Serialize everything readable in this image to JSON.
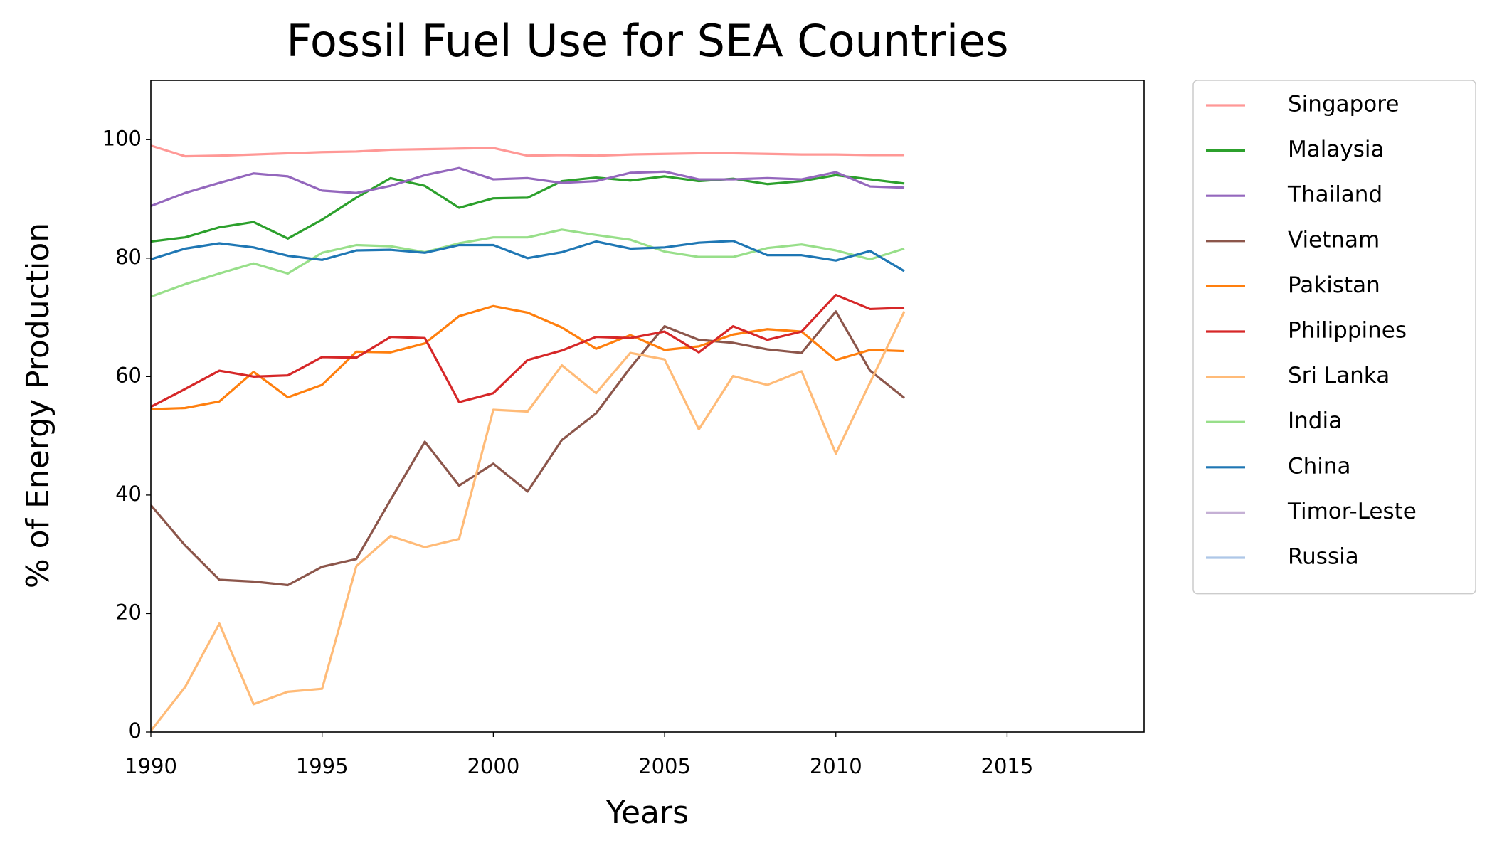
{
  "chart_data": {
    "type": "line",
    "title": "Fossil Fuel Use for SEA Countries",
    "xlabel": "Years",
    "ylabel": "% of Energy Production",
    "x": [
      1990,
      1991,
      1992,
      1993,
      1994,
      1995,
      1996,
      1997,
      1998,
      1999,
      2000,
      2001,
      2002,
      2003,
      2004,
      2005,
      2006,
      2007,
      2008,
      2009,
      2010,
      2011,
      2012
    ],
    "xlim": [
      1990,
      2019
    ],
    "xticks": [
      1990,
      1995,
      2000,
      2005,
      2010,
      2015
    ],
    "ylim": [
      0,
      110
    ],
    "yticks": [
      0,
      20,
      40,
      60,
      80,
      100
    ],
    "grid": false,
    "legend": "outside-right",
    "series": [
      {
        "name": "Singapore",
        "color": "#ff9896",
        "values": [
          99,
          97.2,
          97.3,
          97.5,
          97.7,
          97.9,
          98.0,
          98.3,
          98.4,
          98.5,
          98.6,
          97.3,
          97.4,
          97.3,
          97.5,
          97.6,
          97.7,
          97.7,
          97.6,
          97.5,
          97.5,
          97.4,
          97.4
        ]
      },
      {
        "name": "Malaysia",
        "color": "#2ca02c",
        "values": [
          82.8,
          83.5,
          85.2,
          86.1,
          83.3,
          86.5,
          90.2,
          93.5,
          92.2,
          88.5,
          90.1,
          90.2,
          93.0,
          93.6,
          93.1,
          93.8,
          93.0,
          93.4,
          92.5,
          93.0,
          94.0,
          93.3,
          92.6
        ]
      },
      {
        "name": "Thailand",
        "color": "#9467bd",
        "values": [
          88.8,
          91.0,
          92.7,
          94.3,
          93.8,
          91.4,
          91.0,
          92.2,
          94.0,
          95.2,
          93.3,
          93.5,
          92.7,
          93.0,
          94.4,
          94.6,
          93.3,
          93.3,
          93.5,
          93.3,
          94.5,
          92.1,
          91.9
        ]
      },
      {
        "name": "Vietnam",
        "color": "#8c564b",
        "values": [
          38.3,
          31.5,
          25.7,
          25.4,
          24.8,
          27.9,
          29.2,
          39.2,
          49.0,
          41.6,
          45.3,
          40.6,
          49.3,
          53.8,
          61.5,
          68.5,
          66.2,
          65.7,
          64.6,
          64.0,
          71.0,
          61.0,
          56.4
        ]
      },
      {
        "name": "Pakistan",
        "color": "#ff7f0e",
        "values": [
          54.5,
          54.7,
          55.8,
          60.8,
          56.5,
          58.6,
          64.2,
          64.1,
          65.6,
          70.2,
          71.9,
          70.8,
          68.3,
          64.7,
          67.0,
          64.5,
          65.1,
          67.1,
          68.0,
          67.6,
          62.8,
          64.5,
          64.3
        ]
      },
      {
        "name": "Philippines",
        "color": "#d62728",
        "values": [
          54.9,
          57.9,
          61.0,
          60.0,
          60.2,
          63.3,
          63.2,
          66.7,
          66.5,
          55.7,
          57.2,
          62.8,
          64.4,
          66.7,
          66.5,
          67.6,
          64.1,
          68.5,
          66.2,
          67.6,
          73.8,
          71.4,
          71.6
        ]
      },
      {
        "name": "Sri Lanka",
        "color": "#ffbb78",
        "values": [
          0.2,
          7.6,
          18.3,
          4.7,
          6.8,
          7.3,
          28.0,
          33.1,
          31.2,
          32.6,
          54.4,
          54.1,
          61.9,
          57.2,
          64.0,
          62.9,
          51.1,
          60.1,
          58.6,
          60.9,
          47.0,
          59.0,
          71.0
        ]
      },
      {
        "name": "India",
        "color": "#98df8a",
        "values": [
          73.5,
          75.6,
          77.4,
          79.1,
          77.4,
          80.9,
          82.2,
          82.0,
          81.0,
          82.5,
          83.5,
          83.5,
          84.8,
          83.9,
          83.1,
          81.1,
          80.2,
          80.2,
          81.7,
          82.3,
          81.3,
          79.8,
          81.6
        ]
      },
      {
        "name": "China",
        "color": "#1f77b4",
        "values": [
          79.8,
          81.6,
          82.5,
          81.8,
          80.4,
          79.7,
          81.3,
          81.4,
          80.9,
          82.2,
          82.2,
          80.0,
          81.0,
          82.8,
          81.6,
          81.8,
          82.6,
          82.9,
          80.5,
          80.5,
          79.6,
          81.2,
          77.8
        ]
      },
      {
        "name": "Timor-Leste",
        "color": "#c5b0d5",
        "values": [
          null,
          null,
          null,
          null,
          null,
          null,
          null,
          null,
          null,
          null,
          null,
          null,
          null,
          null,
          null,
          null,
          null,
          null,
          null,
          null,
          null,
          null,
          null
        ]
      },
      {
        "name": "Russia",
        "color": "#aec7e8",
        "values": [
          null,
          null,
          null,
          null,
          null,
          null,
          null,
          null,
          null,
          null,
          null,
          null,
          null,
          null,
          null,
          null,
          null,
          null,
          null,
          null,
          null,
          null,
          null
        ]
      }
    ]
  }
}
